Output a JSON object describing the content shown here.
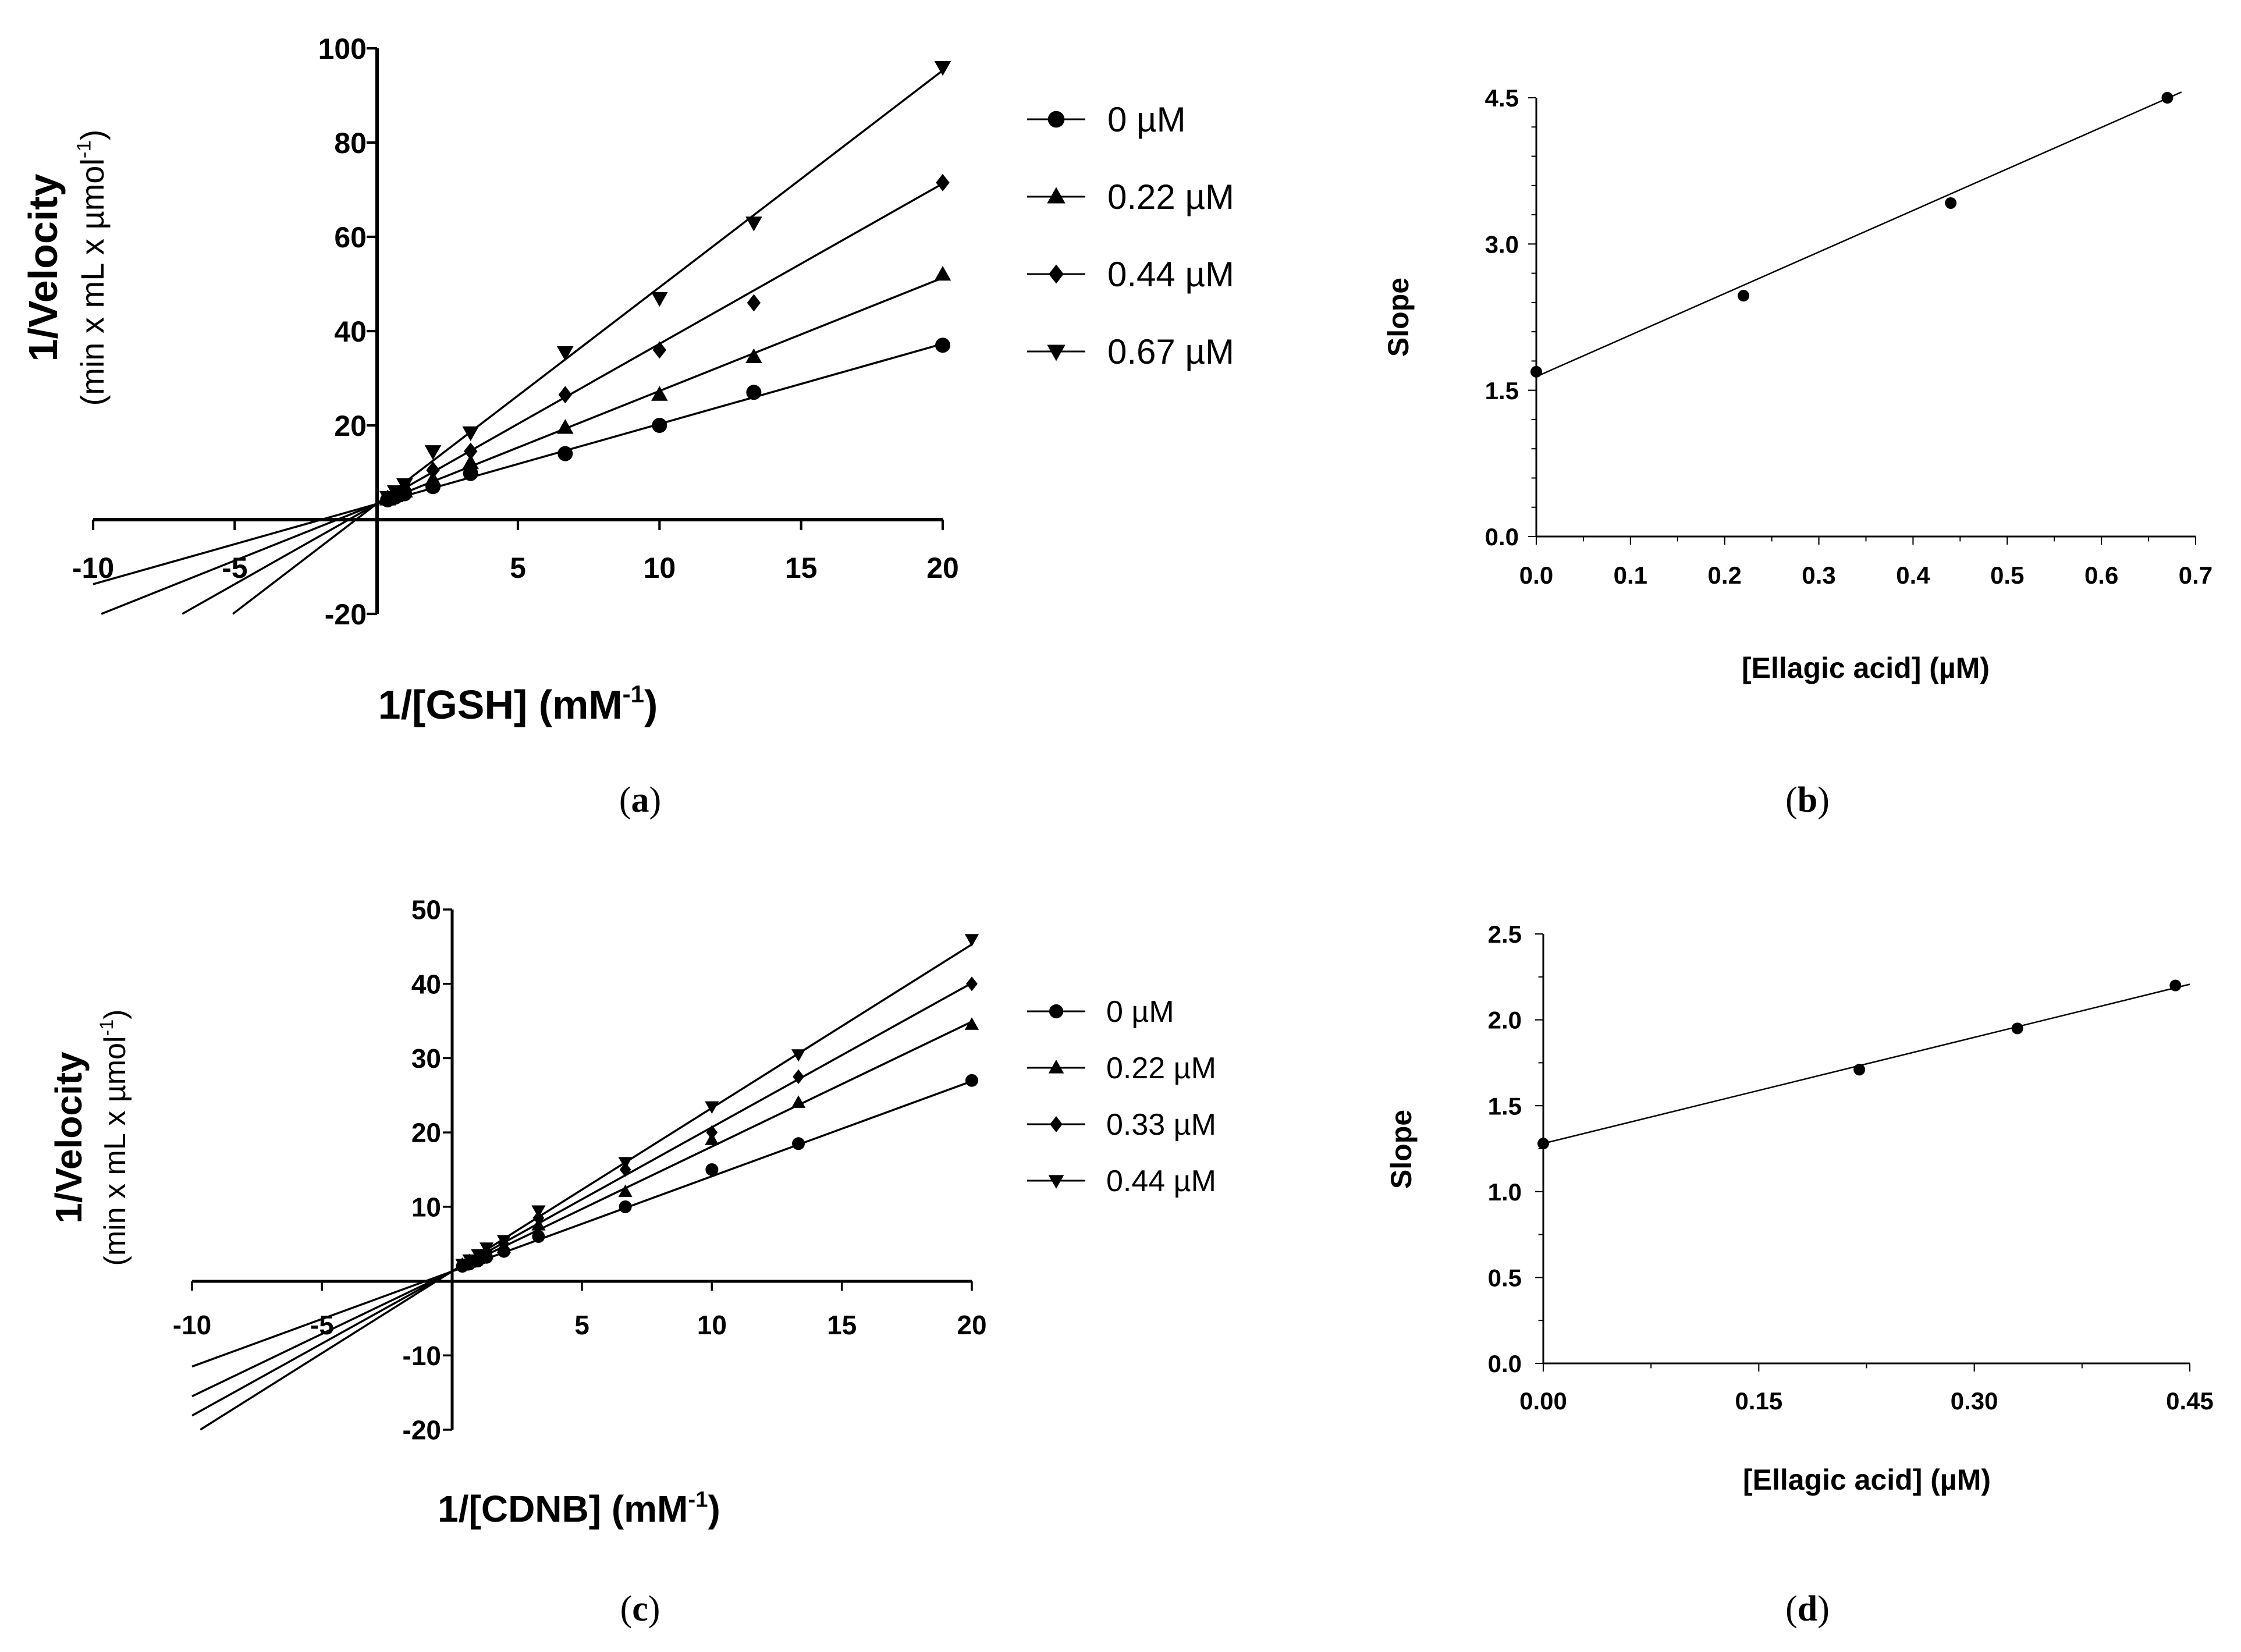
{
  "chart_data": [
    {
      "panel": "a",
      "type": "line",
      "caption": {
        "open": "(",
        "letter": "a",
        "close": ")"
      },
      "xlabel": {
        "main": "1/[GSH] (mM",
        "sup": "-1",
        "close": ")"
      },
      "ylabel": {
        "main": "1/Velocity",
        "sub": "(min x mL x µmol",
        "sub_sup": "-1",
        "sub_close": ")"
      },
      "xlim": [
        -10,
        20
      ],
      "ylim": [
        -20,
        100
      ],
      "xticks": [
        -10,
        -5,
        5,
        10,
        15,
        20
      ],
      "yticks": [
        -20,
        20,
        40,
        60,
        80,
        100
      ],
      "line_x_range": [
        -10,
        20
      ],
      "series": [
        {
          "name": "0 µM",
          "marker": "circle",
          "x": [
            0.4,
            0.67,
            1,
            2,
            3.33,
            6.67,
            10,
            13.33,
            20
          ],
          "y": [
            4.2,
            4.8,
            5.5,
            7,
            9.8,
            14,
            20,
            27,
            37
          ],
          "slope": 1.7,
          "intercept": 3.3
        },
        {
          "name": "0.22 µM",
          "marker": "triangle-up",
          "x": [
            0.4,
            0.67,
            1,
            2,
            3.33,
            6.67,
            10,
            13.33,
            20
          ],
          "y": [
            4.3,
            5,
            6,
            8.5,
            12,
            19.5,
            26.5,
            34.5,
            52
          ],
          "slope": 2.4,
          "intercept": 3.3
        },
        {
          "name": "0.44 µM",
          "marker": "diamond",
          "x": [
            0.4,
            0.67,
            1,
            2,
            3.33,
            6.67,
            10,
            13.33,
            20
          ],
          "y": [
            4.5,
            5.3,
            6.5,
            10.5,
            14.5,
            26.5,
            36,
            46,
            71.5
          ],
          "slope": 3.4,
          "intercept": 3.3
        },
        {
          "name": "0.67 µM",
          "marker": "triangle-down",
          "x": [
            0.4,
            0.67,
            1,
            2,
            3.33,
            6.67,
            10,
            13.33,
            20
          ],
          "y": [
            4.8,
            6,
            7.5,
            14.5,
            18.5,
            35.5,
            47,
            63,
            96
          ],
          "slope": 4.6,
          "intercept": 3.3
        }
      ]
    },
    {
      "panel": "b",
      "type": "scatter",
      "caption": {
        "open": "(",
        "letter": "b",
        "close": ")"
      },
      "xlabel": "[Ellagic acid] (µM)",
      "ylabel": "Slope",
      "xlim": [
        0,
        0.7
      ],
      "ylim": [
        0,
        4.5
      ],
      "xticks": [
        "0.0",
        "0.1",
        "0.2",
        "0.3",
        "0.4",
        "0.5",
        "0.6",
        "0.7"
      ],
      "yticks": [
        "0.0",
        "1.5",
        "3.0",
        "4.5"
      ],
      "x": [
        0,
        0.22,
        0.44,
        0.67
      ],
      "y": [
        1.69,
        2.47,
        3.42,
        4.5
      ],
      "fit": {
        "slope": 4.26,
        "intercept": 1.64,
        "x_range": [
          0,
          0.685
        ]
      }
    },
    {
      "panel": "c",
      "type": "line",
      "caption": {
        "open": "(",
        "letter": "c",
        "close": ")"
      },
      "xlabel": {
        "main": "1/[CDNB] (mM",
        "sup": "-1",
        "close": ")"
      },
      "ylabel": {
        "main": "1/Velocity",
        "sub": "(min x mL x µmol",
        "sub_sup": "-1",
        "sub_close": ")"
      },
      "xlim": [
        -10,
        20
      ],
      "ylim": [
        -20,
        50
      ],
      "xticks": [
        -10,
        -5,
        5,
        10,
        15,
        20
      ],
      "yticks": [
        -20,
        -10,
        10,
        20,
        30,
        40,
        50
      ],
      "line_x_range": [
        -10,
        20
      ],
      "series": [
        {
          "name": "0 µM",
          "marker": "circle",
          "x": [
            0.4,
            0.67,
            1,
            1.33,
            2,
            3.33,
            6.67,
            10,
            13.33,
            20
          ],
          "y": [
            2,
            2.3,
            2.7,
            3.2,
            4,
            6,
            10,
            15,
            18.5,
            27
          ],
          "slope": 1.28,
          "intercept": 1.3
        },
        {
          "name": "0.22 µM",
          "marker": "triangle-up",
          "x": [
            0.4,
            0.67,
            1,
            1.33,
            2,
            3.33,
            6.67,
            10,
            13.33,
            20
          ],
          "y": [
            2.1,
            2.5,
            3,
            3.6,
            4.5,
            7.5,
            12,
            19,
            24,
            34.5
          ],
          "slope": 1.68,
          "intercept": 1.3
        },
        {
          "name": "0.33 µM",
          "marker": "diamond",
          "x": [
            0.4,
            0.67,
            1,
            1.33,
            2,
            3.33,
            6.67,
            10,
            13.33,
            20
          ],
          "y": [
            2.2,
            2.7,
            3.3,
            4,
            5,
            8.5,
            15,
            20,
            27.5,
            40
          ],
          "slope": 1.94,
          "intercept": 1.3
        },
        {
          "name": "0.44 µM",
          "marker": "triangle-down",
          "x": [
            0.4,
            0.67,
            1,
            1.33,
            2,
            3.33,
            6.67,
            10,
            13.33,
            20
          ],
          "y": [
            2.3,
            2.9,
            3.6,
            4.5,
            5.5,
            9.5,
            16,
            23.5,
            30.5,
            46
          ],
          "slope": 2.2,
          "intercept": 1.3
        }
      ]
    },
    {
      "panel": "d",
      "type": "scatter",
      "caption": {
        "open": "(",
        "letter": "d",
        "close": ")"
      },
      "xlabel": "[Ellagic acid] (µM)",
      "ylabel": "Slope",
      "xlim": [
        0,
        0.45
      ],
      "ylim": [
        0,
        2.5
      ],
      "xticks": [
        "0.00",
        "0.15",
        "0.30",
        "0.45"
      ],
      "yticks": [
        "0.0",
        "0.5",
        "1.0",
        "1.5",
        "2.0",
        "2.5"
      ],
      "x": [
        0,
        0.22,
        0.33,
        0.44
      ],
      "y": [
        1.28,
        1.71,
        1.95,
        2.2
      ],
      "fit": {
        "slope": 2.06,
        "intercept": 1.28,
        "x_range": [
          0,
          0.45
        ]
      }
    }
  ]
}
